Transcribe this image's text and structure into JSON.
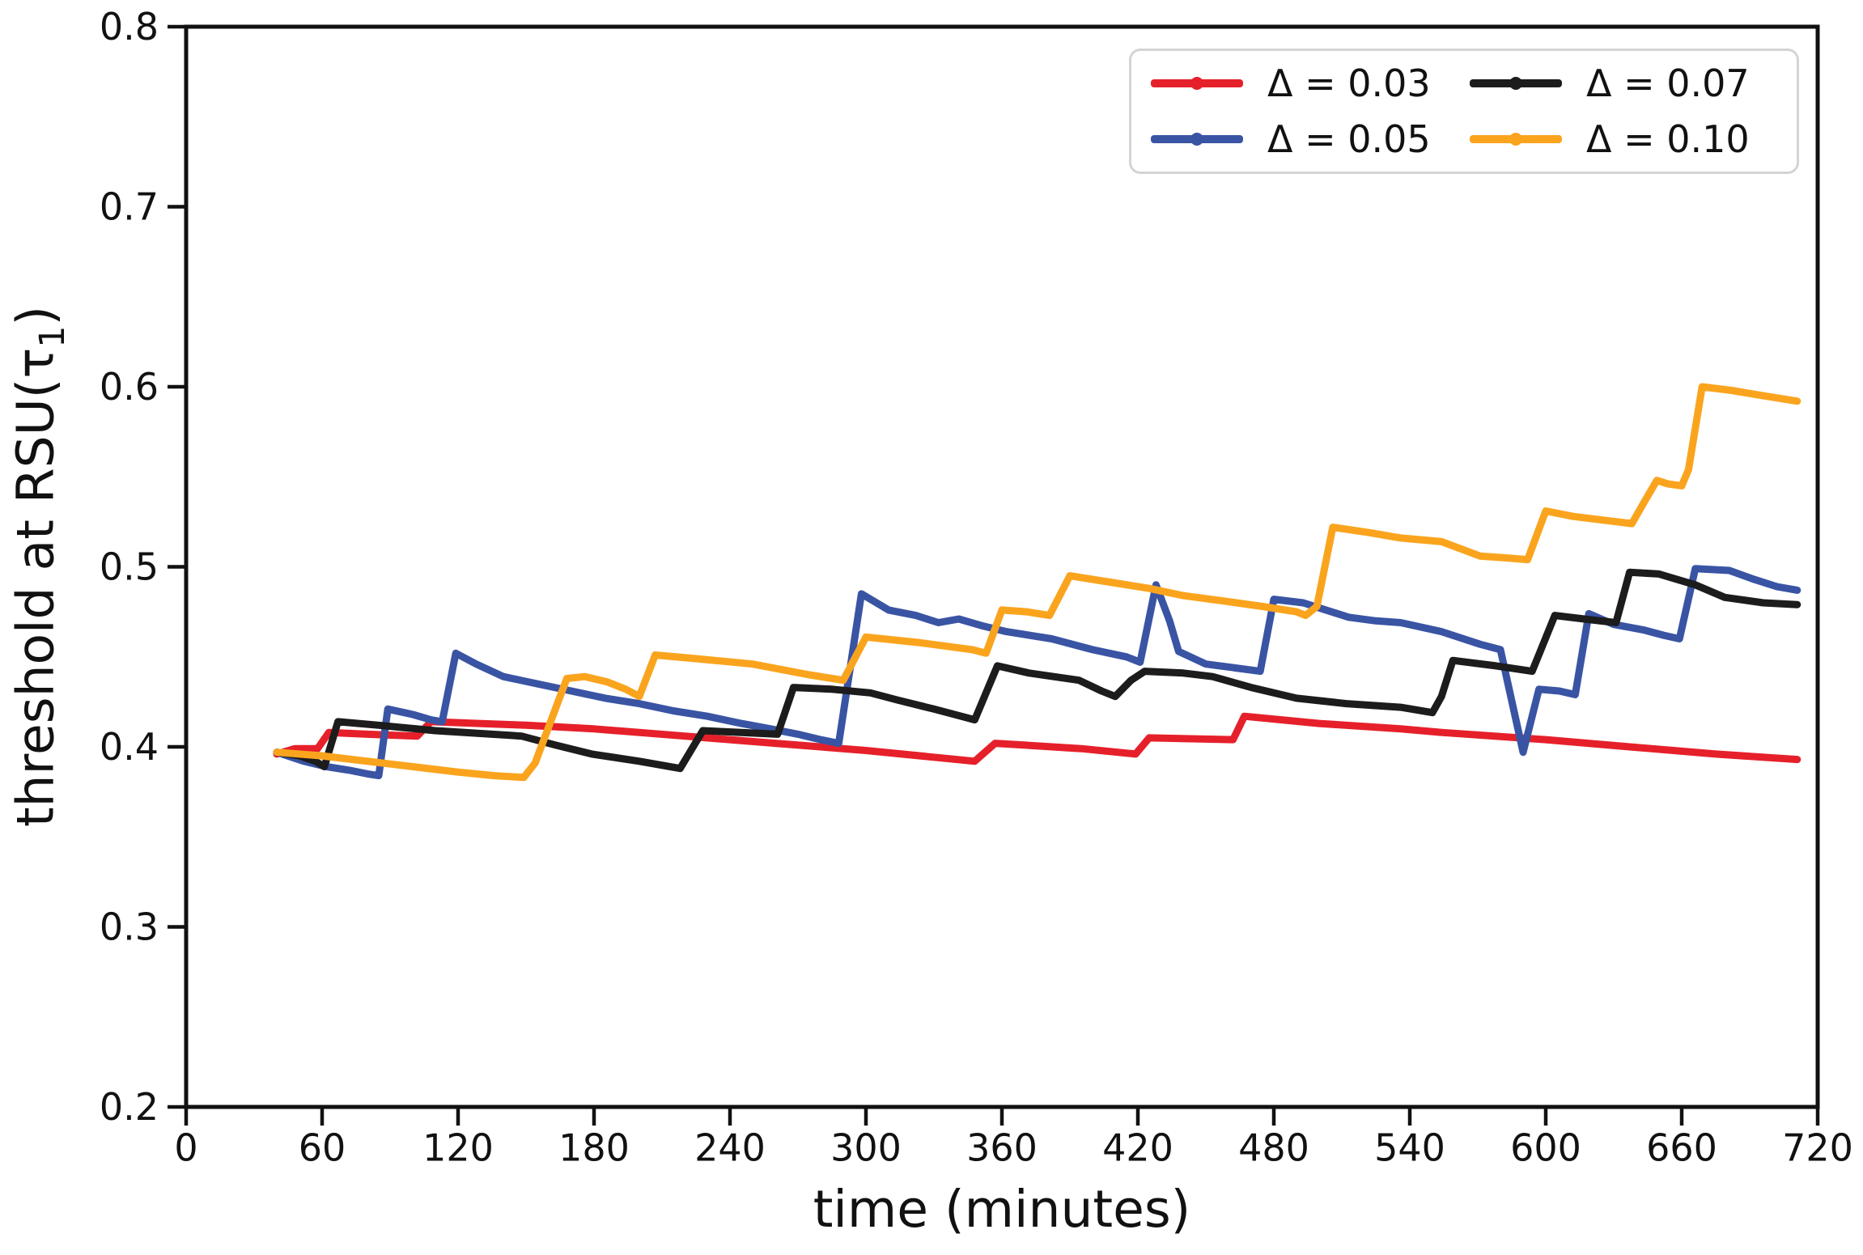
{
  "figure": {
    "background": "#ffffff",
    "text_color": "#111111",
    "spine_color": "#111111"
  },
  "chart_data": {
    "type": "line",
    "title": "",
    "xlabel": "time (minutes)",
    "ylabel": "threshold at RSU(τ₁)",
    "ylabel_parts": {
      "prefix": "threshold at RSU(τ",
      "sub": "1",
      "suffix": ")"
    },
    "xlim": [
      0,
      720
    ],
    "ylim": [
      0.2,
      0.8
    ],
    "xticks": [
      0,
      60,
      120,
      180,
      240,
      300,
      360,
      420,
      480,
      540,
      600,
      660,
      720
    ],
    "yticks": [
      0.2,
      0.3,
      0.4,
      0.5,
      0.6,
      0.7,
      0.8
    ],
    "grid": false,
    "legend_position": "upper right",
    "legend_columns": 2,
    "series": [
      {
        "name": "Δ = 0.03",
        "delta": 0.03,
        "color": "#e6202a",
        "points": [
          [
            40,
            0.396
          ],
          [
            48,
            0.399
          ],
          [
            58,
            0.399
          ],
          [
            63,
            0.408
          ],
          [
            80,
            0.407
          ],
          [
            102,
            0.406
          ],
          [
            108,
            0.414
          ],
          [
            150,
            0.412
          ],
          [
            180,
            0.41
          ],
          [
            220,
            0.406
          ],
          [
            260,
            0.402
          ],
          [
            300,
            0.398
          ],
          [
            348,
            0.392
          ],
          [
            357,
            0.402
          ],
          [
            395,
            0.399
          ],
          [
            419,
            0.396
          ],
          [
            425,
            0.405
          ],
          [
            462,
            0.404
          ],
          [
            467,
            0.417
          ],
          [
            500,
            0.413
          ],
          [
            536,
            0.41
          ],
          [
            554,
            0.408
          ],
          [
            600,
            0.404
          ],
          [
            637,
            0.4
          ],
          [
            675,
            0.396
          ],
          [
            711,
            0.393
          ]
        ]
      },
      {
        "name": "Δ = 0.05",
        "delta": 0.05,
        "color": "#3a54a4",
        "points": [
          [
            40,
            0.397
          ],
          [
            52,
            0.392
          ],
          [
            62,
            0.389
          ],
          [
            72,
            0.387
          ],
          [
            80,
            0.385
          ],
          [
            85,
            0.384
          ],
          [
            89,
            0.421
          ],
          [
            100,
            0.418
          ],
          [
            108,
            0.415
          ],
          [
            113,
            0.414
          ],
          [
            119,
            0.452
          ],
          [
            128,
            0.446
          ],
          [
            140,
            0.439
          ],
          [
            155,
            0.435
          ],
          [
            170,
            0.431
          ],
          [
            185,
            0.427
          ],
          [
            200,
            0.424
          ],
          [
            215,
            0.42
          ],
          [
            230,
            0.417
          ],
          [
            245,
            0.413
          ],
          [
            258,
            0.41
          ],
          [
            270,
            0.407
          ],
          [
            280,
            0.404
          ],
          [
            288,
            0.402
          ],
          [
            298,
            0.485
          ],
          [
            310,
            0.476
          ],
          [
            322,
            0.473
          ],
          [
            332,
            0.469
          ],
          [
            341,
            0.471
          ],
          [
            352,
            0.467
          ],
          [
            362,
            0.464
          ],
          [
            382,
            0.46
          ],
          [
            400,
            0.454
          ],
          [
            415,
            0.45
          ],
          [
            421,
            0.447
          ],
          [
            428,
            0.49
          ],
          [
            434,
            0.47
          ],
          [
            438,
            0.453
          ],
          [
            450,
            0.446
          ],
          [
            462,
            0.444
          ],
          [
            474,
            0.442
          ],
          [
            480,
            0.482
          ],
          [
            493,
            0.48
          ],
          [
            503,
            0.476
          ],
          [
            513,
            0.472
          ],
          [
            525,
            0.47
          ],
          [
            536,
            0.469
          ],
          [
            554,
            0.464
          ],
          [
            571,
            0.457
          ],
          [
            580,
            0.454
          ],
          [
            590,
            0.397
          ],
          [
            597,
            0.432
          ],
          [
            606,
            0.431
          ],
          [
            613,
            0.429
          ],
          [
            619,
            0.474
          ],
          [
            630,
            0.468
          ],
          [
            643,
            0.465
          ],
          [
            652,
            0.462
          ],
          [
            659,
            0.46
          ],
          [
            666,
            0.499
          ],
          [
            681,
            0.498
          ],
          [
            692,
            0.493
          ],
          [
            702,
            0.489
          ],
          [
            711,
            0.487
          ]
        ]
      },
      {
        "name": "Δ = 0.07",
        "delta": 0.07,
        "color": "#1c1c1c",
        "points": [
          [
            40,
            0.397
          ],
          [
            50,
            0.395
          ],
          [
            57,
            0.392
          ],
          [
            61,
            0.389
          ],
          [
            67,
            0.414
          ],
          [
            85,
            0.412
          ],
          [
            110,
            0.409
          ],
          [
            135,
            0.407
          ],
          [
            148,
            0.406
          ],
          [
            163,
            0.401
          ],
          [
            179,
            0.396
          ],
          [
            200,
            0.392
          ],
          [
            218,
            0.388
          ],
          [
            228,
            0.409
          ],
          [
            245,
            0.408
          ],
          [
            261,
            0.407
          ],
          [
            268,
            0.433
          ],
          [
            285,
            0.432
          ],
          [
            302,
            0.43
          ],
          [
            314,
            0.426
          ],
          [
            330,
            0.421
          ],
          [
            348,
            0.415
          ],
          [
            358,
            0.445
          ],
          [
            372,
            0.441
          ],
          [
            394,
            0.437
          ],
          [
            404,
            0.431
          ],
          [
            410,
            0.428
          ],
          [
            417,
            0.437
          ],
          [
            423,
            0.442
          ],
          [
            440,
            0.441
          ],
          [
            453,
            0.439
          ],
          [
            470,
            0.433
          ],
          [
            490,
            0.427
          ],
          [
            512,
            0.424
          ],
          [
            536,
            0.422
          ],
          [
            550,
            0.419
          ],
          [
            554,
            0.428
          ],
          [
            559,
            0.448
          ],
          [
            578,
            0.445
          ],
          [
            594,
            0.442
          ],
          [
            604,
            0.473
          ],
          [
            617,
            0.471
          ],
          [
            631,
            0.469
          ],
          [
            637,
            0.497
          ],
          [
            650,
            0.496
          ],
          [
            666,
            0.49
          ],
          [
            679,
            0.483
          ],
          [
            696,
            0.48
          ],
          [
            711,
            0.479
          ]
        ]
      },
      {
        "name": "Δ = 0.10",
        "delta": 0.1,
        "color": "#faa41e",
        "points": [
          [
            40,
            0.397
          ],
          [
            60,
            0.395
          ],
          [
            80,
            0.392
          ],
          [
            100,
            0.389
          ],
          [
            120,
            0.386
          ],
          [
            136,
            0.384
          ],
          [
            149,
            0.383
          ],
          [
            154,
            0.391
          ],
          [
            168,
            0.438
          ],
          [
            176,
            0.439
          ],
          [
            186,
            0.436
          ],
          [
            194,
            0.432
          ],
          [
            200,
            0.428
          ],
          [
            207,
            0.451
          ],
          [
            225,
            0.449
          ],
          [
            250,
            0.446
          ],
          [
            275,
            0.44
          ],
          [
            290,
            0.437
          ],
          [
            300,
            0.461
          ],
          [
            323,
            0.458
          ],
          [
            347,
            0.454
          ],
          [
            353,
            0.452
          ],
          [
            360,
            0.476
          ],
          [
            371,
            0.475
          ],
          [
            381,
            0.473
          ],
          [
            390,
            0.495
          ],
          [
            410,
            0.491
          ],
          [
            425,
            0.488
          ],
          [
            440,
            0.484
          ],
          [
            458,
            0.481
          ],
          [
            475,
            0.478
          ],
          [
            490,
            0.475
          ],
          [
            494,
            0.473
          ],
          [
            499,
            0.478
          ],
          [
            506,
            0.522
          ],
          [
            522,
            0.519
          ],
          [
            536,
            0.516
          ],
          [
            554,
            0.514
          ],
          [
            571,
            0.506
          ],
          [
            582,
            0.505
          ],
          [
            592,
            0.504
          ],
          [
            600,
            0.531
          ],
          [
            612,
            0.528
          ],
          [
            625,
            0.526
          ],
          [
            638,
            0.524
          ],
          [
            643,
            0.535
          ],
          [
            649,
            0.548
          ],
          [
            654,
            0.546
          ],
          [
            660,
            0.545
          ],
          [
            663,
            0.554
          ],
          [
            669,
            0.6
          ],
          [
            682,
            0.598
          ],
          [
            696,
            0.595
          ],
          [
            711,
            0.592
          ]
        ]
      }
    ]
  }
}
